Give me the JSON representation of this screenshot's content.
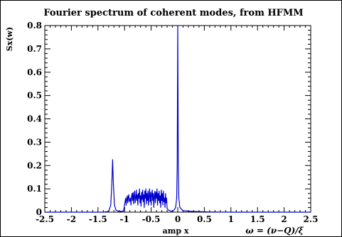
{
  "chart_data": {
    "type": "line",
    "title": "Fourier spectrum of coherent modes, from HFMM",
    "ylabel": "Sx(w)",
    "xlabel": "amp x",
    "xlabel_formula": "ω = (ν−Q)/ξ",
    "xlim": [
      -2.5,
      2.5
    ],
    "ylim": [
      0,
      0.8
    ],
    "xticks": [
      "-2.5",
      "-2",
      "-1.5",
      "-1",
      "-0.5",
      "0",
      "0.5",
      "1",
      "1.5",
      "2",
      "2.5"
    ],
    "yticks": [
      "0",
      "0.1",
      "0.2",
      "0.3",
      "0.4",
      "0.5",
      "0.6",
      "0.7",
      "0.8"
    ],
    "xtick_values": [
      -2.5,
      -2,
      -1.5,
      -1,
      -0.5,
      0,
      0.5,
      1,
      1.5,
      2,
      2.5
    ],
    "ytick_values": [
      0,
      0.1,
      0.2,
      0.3,
      0.4,
      0.5,
      0.6,
      0.7,
      0.8
    ],
    "grid": false,
    "series": [
      {
        "color": "#0000cc",
        "x": [
          -2.5,
          -1.4,
          -1.3,
          -1.26,
          -1.24,
          -1.225,
          -1.21,
          -1.19,
          -1.16,
          -1.1,
          -1.02,
          -0.99,
          -0.98,
          -0.97,
          -0.96,
          -0.95,
          -0.94,
          -0.93,
          -0.92,
          -0.91,
          -0.9,
          -0.89,
          -0.88,
          -0.87,
          -0.86,
          -0.85,
          -0.84,
          -0.83,
          -0.82,
          -0.81,
          -0.8,
          -0.79,
          -0.78,
          -0.77,
          -0.76,
          -0.75,
          -0.74,
          -0.73,
          -0.72,
          -0.71,
          -0.7,
          -0.69,
          -0.68,
          -0.67,
          -0.66,
          -0.65,
          -0.64,
          -0.63,
          -0.62,
          -0.61,
          -0.6,
          -0.59,
          -0.58,
          -0.57,
          -0.56,
          -0.55,
          -0.54,
          -0.53,
          -0.52,
          -0.51,
          -0.5,
          -0.49,
          -0.48,
          -0.47,
          -0.46,
          -0.45,
          -0.44,
          -0.43,
          -0.42,
          -0.41,
          -0.4,
          -0.39,
          -0.38,
          -0.37,
          -0.36,
          -0.35,
          -0.34,
          -0.33,
          -0.32,
          -0.31,
          -0.3,
          -0.29,
          -0.28,
          -0.27,
          -0.26,
          -0.25,
          -0.24,
          -0.23,
          -0.22,
          -0.21,
          -0.2,
          -0.17,
          -0.12,
          -0.08,
          -0.04,
          -0.02,
          -0.01,
          0.0,
          0.01,
          0.02,
          0.04,
          0.1,
          0.3,
          0.6,
          1.0,
          2.5
        ],
        "y": [
          0.0,
          0.0,
          0.003,
          0.03,
          0.12,
          0.225,
          0.12,
          0.03,
          0.008,
          0.003,
          0.005,
          0.045,
          0.06,
          0.03,
          0.055,
          0.07,
          0.04,
          0.065,
          0.075,
          0.045,
          0.05,
          0.06,
          0.03,
          0.065,
          0.08,
          0.05,
          0.085,
          0.035,
          0.07,
          0.09,
          0.04,
          0.06,
          0.095,
          0.05,
          0.075,
          0.03,
          0.08,
          0.06,
          0.1,
          0.04,
          0.07,
          0.025,
          0.085,
          0.055,
          0.095,
          0.045,
          0.075,
          0.02,
          0.09,
          0.06,
          0.1,
          0.035,
          0.08,
          0.05,
          0.09,
          0.03,
          0.07,
          0.1,
          0.045,
          0.085,
          0.03,
          0.075,
          0.095,
          0.05,
          0.08,
          0.02,
          0.07,
          0.09,
          0.04,
          0.085,
          0.06,
          0.1,
          0.03,
          0.08,
          0.05,
          0.09,
          0.04,
          0.07,
          0.02,
          0.095,
          0.05,
          0.08,
          0.03,
          0.09,
          0.045,
          0.06,
          0.02,
          0.08,
          0.04,
          0.06,
          0.015,
          0.008,
          0.004,
          0.006,
          0.02,
          0.06,
          0.2,
          0.8,
          0.2,
          0.06,
          0.02,
          0.006,
          0.003,
          0.001,
          0.0,
          0.0
        ]
      }
    ]
  }
}
